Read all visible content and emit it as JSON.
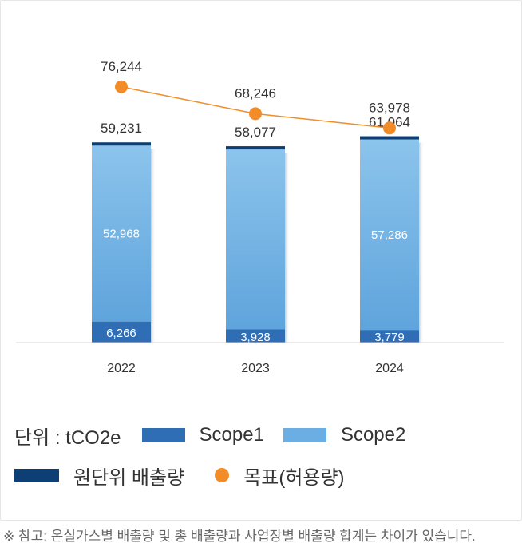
{
  "chart_data": {
    "type": "bar",
    "categories": [
      "2022",
      "2023",
      "2024"
    ],
    "series": [
      {
        "name": "Scope1",
        "values": [
          6266,
          3928,
          3779
        ],
        "labels": [
          "6,266",
          "3,928",
          "3,779"
        ],
        "color": "#2f6db5"
      },
      {
        "name": "Scope2",
        "values": [
          52968,
          54149,
          57286
        ],
        "labels": [
          "52,968",
          "",
          "57,286"
        ],
        "color": "#6aaee3"
      }
    ],
    "totals": {
      "name": "원단위 배출량",
      "values": [
        59231,
        58077,
        61064
      ],
      "labels": [
        "59,231",
        "58,077",
        "61.064"
      ],
      "color": "#0d3f75"
    },
    "target": {
      "name": "목표(허용량)",
      "type": "line",
      "values": [
        76244,
        68246,
        63978
      ],
      "labels": [
        "76,244",
        "68,246",
        "63,978"
      ],
      "color": "#f28c28"
    },
    "ylim": [
      0,
      95000
    ],
    "grid": false,
    "legend_position": "bottom",
    "title": "",
    "xlabel": "",
    "ylabel": ""
  },
  "legend": {
    "unit": "단위 : tCO2e",
    "scope1": "Scope1",
    "scope2": "Scope2",
    "intensity": "원단위 배출량",
    "target": "목표(허용량)"
  },
  "footnote": "※ 참고: 온실가스별 배출량 및 총 배출량과 사업장별 배출량 합계는 차이가 있습니다."
}
